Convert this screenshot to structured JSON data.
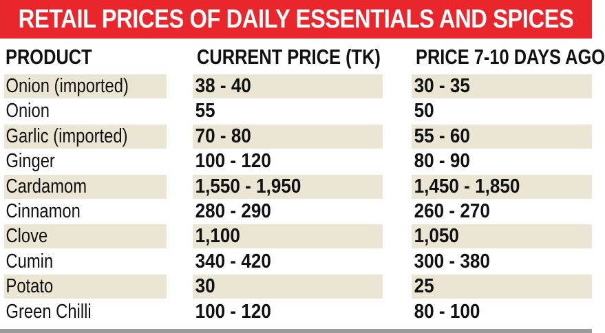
{
  "title": "RETAIL PRICES OF DAILY ESSENTIALS AND SPICES",
  "colors": {
    "title_bg": "#e8262b",
    "row_shade": "#ebe6d3",
    "bottom_bar": "#9a9a9a"
  },
  "headers": [
    "PRODUCT",
    "CURRENT PRICE (TK)",
    "PRICE 7-10 DAYS AGO"
  ],
  "rows": [
    {
      "product": "Onion (imported)",
      "current": "38 - 40",
      "previous": "30 - 35"
    },
    {
      "product": "Onion",
      "current": "55",
      "previous": "50"
    },
    {
      "product": "Garlic (imported)",
      "current": "70 - 80",
      "previous": "55 - 60"
    },
    {
      "product": "Ginger",
      "current": "100 - 120",
      "previous": "80 - 90"
    },
    {
      "product": "Cardamom",
      "current": "1,550 - 1,950",
      "previous": "1,450 - 1,850"
    },
    {
      "product": "Cinnamon",
      "current": "280 - 290",
      "previous": "260 - 270"
    },
    {
      "product": "Clove",
      "current": "1,100",
      "previous": "1,050"
    },
    {
      "product": "Cumin",
      "current": "340 - 420",
      "previous": "300 - 380"
    },
    {
      "product": "Potato",
      "current": "30",
      "previous": "25"
    },
    {
      "product": "Green Chilli",
      "current": "100 - 120",
      "previous": "80 - 100"
    }
  ]
}
